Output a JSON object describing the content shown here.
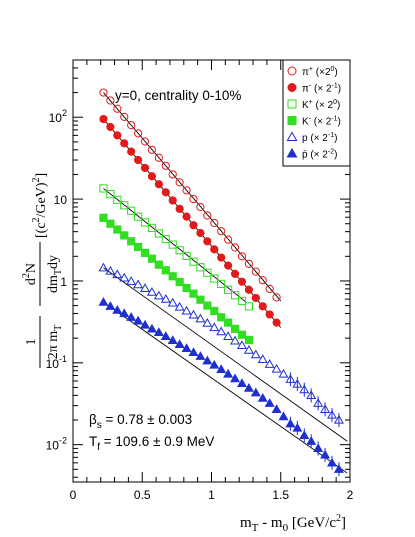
{
  "chart_data": {
    "type": "scatter",
    "annotation": "y=0,  centrality 0-10%",
    "fit_params": {
      "beta_line": [
        "β",
        "s",
        " = 0.78 ± 0.003"
      ],
      "tf_line": [
        "T",
        "f",
        " = 109.6 ± 0.9 MeV"
      ]
    },
    "xlabel": [
      "m",
      "T",
      " - m",
      "0",
      " [GeV/c",
      "2",
      "]"
    ],
    "ylabel": {
      "num1": "1",
      "den1": [
        "2π m",
        "T"
      ],
      "num2": [
        "d",
        "2",
        "N"
      ],
      "den2": [
        "dm",
        "T",
        "dy"
      ],
      "unit": [
        "[(c",
        "2",
        "/GeV)",
        "2",
        "]"
      ]
    },
    "xlim": [
      0,
      2
    ],
    "ylim": [
      0.0035,
      500
    ],
    "y_scale": "log",
    "xticks": [
      "0",
      "0.5",
      "1",
      "1.5",
      "2"
    ],
    "yticks": [
      {
        "value": 100,
        "base": "10",
        "exp": "2"
      },
      {
        "value": 10,
        "base": "10",
        "exp": ""
      },
      {
        "value": 1,
        "base": "1",
        "exp": ""
      },
      {
        "value": 0.1,
        "base": "10",
        "exp": "-1"
      },
      {
        "value": 0.01,
        "base": "10",
        "exp": "-2"
      }
    ],
    "grid": false,
    "legend_position": "top-right",
    "series": [
      {
        "name": [
          "π",
          "+",
          " (×2",
          "0",
          ")"
        ],
        "marker": "circle-open",
        "color": "#e31a1c",
        "x": [
          0.22,
          0.27,
          0.32,
          0.37,
          0.42,
          0.47,
          0.52,
          0.57,
          0.62,
          0.67,
          0.72,
          0.77,
          0.82,
          0.87,
          0.92,
          0.97,
          1.02,
          1.07,
          1.12,
          1.17,
          1.22,
          1.27,
          1.32,
          1.37,
          1.42,
          1.47
        ],
        "y": [
          200,
          160,
          127,
          101,
          80,
          63.5,
          50.5,
          40,
          32,
          25.5,
          20,
          16,
          12.8,
          10,
          8,
          6.3,
          5.1,
          4.05,
          3.2,
          2.56,
          2.0,
          1.62,
          1.3,
          1.02,
          0.8,
          0.63
        ],
        "fit": {
          "x": [
            0.22,
            1.5
          ],
          "y": [
            200,
            0.57
          ]
        }
      },
      {
        "name": [
          "π",
          "-",
          " (× 2",
          "-1",
          ")"
        ],
        "marker": "circle-filled",
        "color": "#e31a1c",
        "x": [
          0.22,
          0.27,
          0.32,
          0.37,
          0.42,
          0.47,
          0.52,
          0.57,
          0.62,
          0.67,
          0.72,
          0.77,
          0.82,
          0.87,
          0.92,
          0.97,
          1.02,
          1.07,
          1.12,
          1.17,
          1.22,
          1.27,
          1.32,
          1.37,
          1.42,
          1.47
        ],
        "y": [
          95,
          76,
          60,
          48,
          38,
          30,
          24,
          19,
          15.2,
          12.1,
          9.6,
          7.6,
          6.1,
          4.8,
          3.85,
          3.05,
          2.43,
          1.93,
          1.54,
          1.22,
          0.98,
          0.78,
          0.62,
          0.49,
          0.39,
          0.31
        ],
        "fit": {
          "x": [
            0.22,
            1.5
          ],
          "y": [
            95,
            0.27
          ]
        }
      },
      {
        "name": [
          "K",
          "+",
          " (× 2",
          "0",
          ")"
        ],
        "marker": "square-open",
        "color": "#33dd22",
        "x": [
          0.22,
          0.27,
          0.32,
          0.37,
          0.42,
          0.47,
          0.52,
          0.57,
          0.62,
          0.67,
          0.72,
          0.77,
          0.82,
          0.87,
          0.92,
          0.97,
          1.02,
          1.07,
          1.12,
          1.17,
          1.22,
          1.27
        ],
        "y": [
          13.5,
          11.5,
          9.8,
          8.4,
          7.2,
          6.1,
          5.2,
          4.45,
          3.8,
          3.25,
          2.78,
          2.37,
          2.02,
          1.72,
          1.47,
          1.26,
          1.07,
          0.92,
          0.78,
          0.67,
          0.57,
          0.49
        ],
        "fit": {
          "x": [
            0.22,
            1.25
          ],
          "y": [
            13.5,
            0.55
          ]
        }
      },
      {
        "name": [
          "K",
          "-",
          " (× 2",
          "-1",
          ")"
        ],
        "marker": "square-filled",
        "color": "#33dd22",
        "x": [
          0.22,
          0.27,
          0.32,
          0.37,
          0.42,
          0.47,
          0.52,
          0.57,
          0.62,
          0.67,
          0.72,
          0.77,
          0.82,
          0.87,
          0.92,
          0.97,
          1.02,
          1.07,
          1.12,
          1.17,
          1.22,
          1.27
        ],
        "y": [
          5.9,
          5.0,
          4.25,
          3.6,
          3.05,
          2.6,
          2.2,
          1.87,
          1.58,
          1.35,
          1.14,
          0.97,
          0.82,
          0.7,
          0.59,
          0.5,
          0.43,
          0.36,
          0.31,
          0.26,
          0.22,
          0.19
        ],
        "fit": {
          "x": [
            0.22,
            1.25
          ],
          "y": [
            5.9,
            0.2
          ]
        }
      },
      {
        "name": [
          "p",
          "",
          "  (× 2",
          "-1",
          ")"
        ],
        "marker": "triangle-open",
        "color": "#1f2fd0",
        "x": [
          0.22,
          0.27,
          0.32,
          0.37,
          0.42,
          0.47,
          0.52,
          0.57,
          0.62,
          0.67,
          0.72,
          0.77,
          0.82,
          0.87,
          0.92,
          0.97,
          1.02,
          1.07,
          1.12,
          1.17,
          1.22,
          1.27,
          1.32,
          1.37,
          1.42,
          1.47,
          1.52,
          1.57,
          1.62,
          1.67,
          1.72,
          1.77,
          1.82,
          1.87,
          1.92
        ],
        "y": [
          1.45,
          1.32,
          1.2,
          1.09,
          0.99,
          0.9,
          0.81,
          0.73,
          0.66,
          0.6,
          0.54,
          0.48,
          0.43,
          0.385,
          0.345,
          0.305,
          0.27,
          0.24,
          0.21,
          0.185,
          0.163,
          0.143,
          0.126,
          0.11,
          0.096,
          0.084,
          0.073,
          0.063,
          0.055,
          0.047,
          0.04,
          0.032,
          0.027,
          0.023,
          0.02
        ],
        "fit": {
          "x": [
            0.22,
            1.98
          ],
          "y": [
            1.45,
            0.011
          ]
        }
      },
      {
        "name": [
          "p̄",
          "",
          " (× 2",
          "-2",
          ")"
        ],
        "marker": "triangle-filled",
        "color": "#1f2fd0",
        "x": [
          0.22,
          0.27,
          0.32,
          0.37,
          0.42,
          0.47,
          0.52,
          0.57,
          0.62,
          0.67,
          0.72,
          0.77,
          0.82,
          0.87,
          0.92,
          0.97,
          1.02,
          1.07,
          1.12,
          1.17,
          1.22,
          1.27,
          1.32,
          1.37,
          1.42,
          1.47,
          1.52,
          1.57,
          1.62,
          1.67,
          1.72,
          1.77,
          1.82,
          1.87,
          1.92
        ],
        "y": [
          0.55,
          0.49,
          0.44,
          0.4,
          0.36,
          0.325,
          0.29,
          0.26,
          0.235,
          0.21,
          0.188,
          0.168,
          0.15,
          0.134,
          0.12,
          0.106,
          0.094,
          0.083,
          0.073,
          0.064,
          0.056,
          0.049,
          0.043,
          0.037,
          0.032,
          0.027,
          0.022,
          0.018,
          0.016,
          0.013,
          0.011,
          0.009,
          0.0075,
          0.006,
          0.005
        ],
        "fit": {
          "x": [
            0.22,
            1.98
          ],
          "y": [
            0.55,
            0.0045
          ]
        }
      }
    ]
  }
}
